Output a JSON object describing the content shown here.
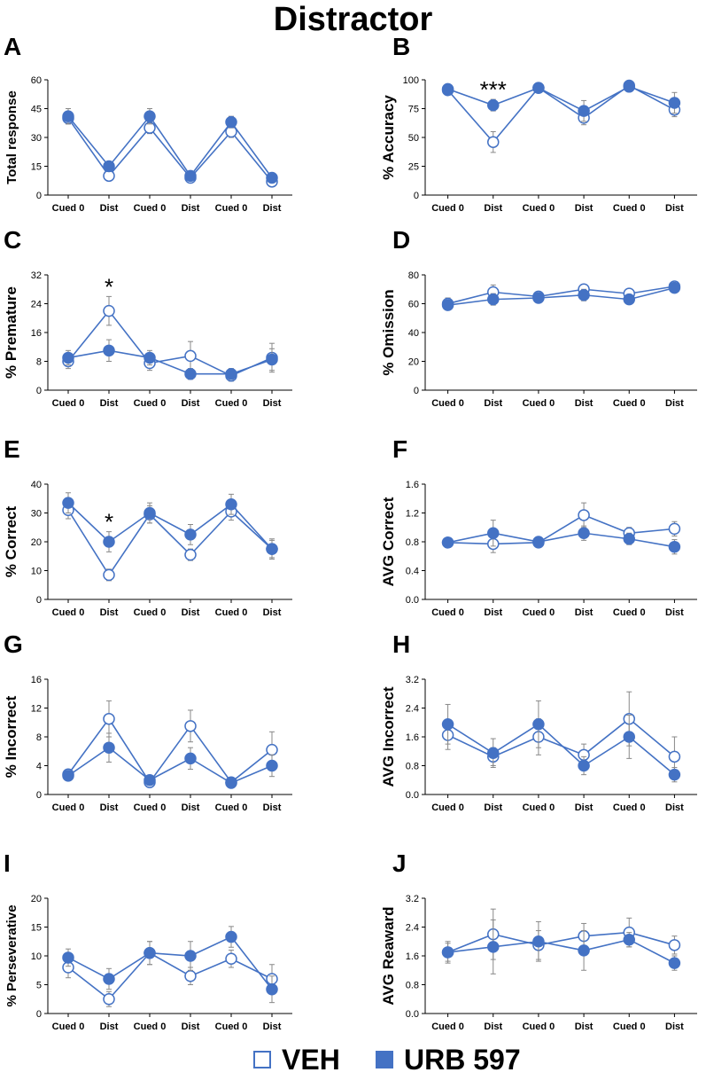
{
  "figure_title": "Distractor",
  "legend": [
    {
      "label": "VEH",
      "style": "open",
      "color": "#4472c4"
    },
    {
      "label": "URB 597",
      "style": "filled",
      "color": "#4472c4"
    }
  ],
  "colors": {
    "line": "#4472c4",
    "error": "#888888",
    "axis": "#000000"
  },
  "chart_data": [
    {
      "panel": "A",
      "type": "line",
      "ylabel": "Total response",
      "ylim": [
        0,
        60
      ],
      "yticks": [
        "0",
        "15",
        "30",
        "45",
        "60"
      ],
      "categories": [
        "Cued 0",
        "Dist",
        "Cued 0",
        "Dist",
        "Cued 0",
        "Dist"
      ],
      "series": [
        {
          "name": "VEH",
          "values": [
            40,
            10,
            35,
            9,
            33,
            7
          ],
          "errors": [
            3,
            1,
            3,
            1,
            3,
            1
          ]
        },
        {
          "name": "URB 597",
          "values": [
            41,
            15,
            41,
            10,
            38,
            9
          ],
          "errors": [
            4,
            2,
            4,
            1,
            3,
            1
          ]
        }
      ],
      "annotations": []
    },
    {
      "panel": "B",
      "type": "line",
      "ylabel": "% Accuracy",
      "ylim": [
        0,
        100
      ],
      "yticks": [
        "0",
        "25",
        "50",
        "75",
        "100"
      ],
      "categories": [
        "Cued 0",
        "Dist",
        "Cued 0",
        "Dist",
        "Cued 0",
        "Dist"
      ],
      "series": [
        {
          "name": "VEH",
          "values": [
            91,
            46,
            93,
            67,
            95,
            74
          ],
          "errors": [
            2,
            9,
            1,
            6,
            1,
            6
          ]
        },
        {
          "name": "URB 597",
          "values": [
            92,
            78,
            93,
            73,
            94,
            80
          ],
          "errors": [
            2,
            5,
            1,
            9,
            1,
            9
          ]
        }
      ],
      "annotations": [
        {
          "category_index": 1,
          "text": "***"
        }
      ]
    },
    {
      "panel": "C",
      "type": "line",
      "ylabel": "% Premature",
      "ylim": [
        0,
        32
      ],
      "yticks": [
        "0",
        "8",
        "16",
        "24",
        "32"
      ],
      "categories": [
        "Cued 0",
        "Dist",
        "Cued 0",
        "Dist",
        "Cued 0",
        "Dist"
      ],
      "series": [
        {
          "name": "VEH",
          "values": [
            8,
            22,
            7.5,
            9.5,
            4,
            9
          ],
          "errors": [
            2,
            4,
            2,
            4,
            1.5,
            4
          ]
        },
        {
          "name": "URB 597",
          "values": [
            9,
            11,
            9,
            4.5,
            4.5,
            8.5
          ],
          "errors": [
            2,
            3,
            2,
            1.5,
            1.5,
            3
          ]
        }
      ],
      "annotations": [
        {
          "category_index": 1,
          "text": "*"
        }
      ]
    },
    {
      "panel": "D",
      "type": "line",
      "ylabel": "% Omission",
      "ylim": [
        0,
        80
      ],
      "yticks": [
        "0",
        "20",
        "40",
        "60",
        "80"
      ],
      "categories": [
        "Cued 0",
        "Dist",
        "Cued 0",
        "Dist",
        "Cued 0",
        "Dist"
      ],
      "series": [
        {
          "name": "VEH",
          "values": [
            60,
            68,
            65,
            70,
            67,
            72
          ],
          "errors": [
            4,
            5,
            3,
            3,
            3,
            3
          ]
        },
        {
          "name": "URB 597",
          "values": [
            59,
            63,
            64,
            66,
            63,
            71
          ],
          "errors": [
            3,
            4,
            3,
            4,
            3,
            3
          ]
        }
      ],
      "annotations": []
    },
    {
      "panel": "E",
      "type": "line",
      "ylabel": "% Correct",
      "ylim": [
        0,
        40
      ],
      "yticks": [
        "0",
        "10",
        "20",
        "30",
        "40"
      ],
      "categories": [
        "Cued 0",
        "Dist",
        "Cued 0",
        "Dist",
        "Cued 0",
        "Dist"
      ],
      "series": [
        {
          "name": "VEH",
          "values": [
            31,
            8.5,
            29.5,
            15.5,
            30.5,
            17.5
          ],
          "errors": [
            3,
            2,
            3,
            2,
            3,
            3
          ]
        },
        {
          "name": "URB 597",
          "values": [
            33.5,
            20,
            30,
            22.5,
            33,
            17.5
          ],
          "errors": [
            3.5,
            3.5,
            3.5,
            3.5,
            3.5,
            3.5
          ]
        }
      ],
      "annotations": [
        {
          "category_index": 1,
          "text": "*"
        }
      ]
    },
    {
      "panel": "F",
      "type": "line",
      "ylabel": "AVG Correct",
      "ylim": [
        0,
        1.6
      ],
      "yticks": [
        "0.0",
        "0.4",
        "0.8",
        "1.2",
        "1.6"
      ],
      "categories": [
        "Cued 0",
        "Dist",
        "Cued 0",
        "Dist",
        "Cued 0",
        "Dist"
      ],
      "series": [
        {
          "name": "VEH",
          "values": [
            0.79,
            0.77,
            0.79,
            1.17,
            0.92,
            0.98
          ],
          "errors": [
            0.04,
            0.12,
            0.05,
            0.17,
            0.08,
            0.1
          ]
        },
        {
          "name": "URB 597",
          "values": [
            0.79,
            0.92,
            0.8,
            0.92,
            0.84,
            0.73
          ],
          "errors": [
            0.04,
            0.18,
            0.06,
            0.1,
            0.08,
            0.1
          ]
        }
      ],
      "annotations": []
    },
    {
      "panel": "G",
      "type": "line",
      "ylabel": "% Incorrect",
      "ylim": [
        0,
        16
      ],
      "yticks": [
        "0",
        "4",
        "8",
        "12",
        "16"
      ],
      "categories": [
        "Cued 0",
        "Dist",
        "Cued 0",
        "Dist",
        "Cued 0",
        "Dist"
      ],
      "series": [
        {
          "name": "VEH",
          "values": [
            2.8,
            10.5,
            1.7,
            9.5,
            1.7,
            6.2
          ],
          "errors": [
            0.5,
            2.5,
            0.5,
            2.2,
            0.4,
            2.5
          ]
        },
        {
          "name": "URB 597",
          "values": [
            2.6,
            6.5,
            2,
            5,
            1.6,
            4
          ],
          "errors": [
            0.5,
            2,
            0.5,
            1.5,
            0.4,
            1.5
          ]
        }
      ],
      "annotations": []
    },
    {
      "panel": "H",
      "type": "line",
      "ylabel": "AVG Incorrect",
      "ylim": [
        0,
        3.2
      ],
      "yticks": [
        "0.0",
        "0.8",
        "1.6",
        "2.4",
        "3.2"
      ],
      "categories": [
        "Cued 0",
        "Dist",
        "Cued 0",
        "Dist",
        "Cued 0",
        "Dist"
      ],
      "series": [
        {
          "name": "VEH",
          "values": [
            1.65,
            1.05,
            1.6,
            1.1,
            2.1,
            1.05
          ],
          "errors": [
            0.4,
            0.25,
            0.5,
            0.3,
            0.75,
            0.55
          ]
        },
        {
          "name": "URB 597",
          "values": [
            1.95,
            1.15,
            1.95,
            0.8,
            1.6,
            0.55
          ],
          "errors": [
            0.55,
            0.4,
            0.65,
            0.25,
            0.6,
            0.2
          ]
        }
      ],
      "annotations": []
    },
    {
      "panel": "I",
      "type": "line",
      "ylabel": "% Perseverative",
      "ylim": [
        0,
        20
      ],
      "yticks": [
        "0",
        "5",
        "10",
        "15",
        "20"
      ],
      "categories": [
        "Cued 0",
        "Dist",
        "Cued 0",
        "Dist",
        "Cued 0",
        "Dist"
      ],
      "series": [
        {
          "name": "VEH",
          "values": [
            8,
            2.5,
            10.5,
            6.5,
            9.5,
            6
          ],
          "errors": [
            1.8,
            1.3,
            2,
            1.5,
            1.5,
            2.5
          ]
        },
        {
          "name": "URB 597",
          "values": [
            9.7,
            6,
            10.5,
            10,
            13.3,
            4.2
          ],
          "errors": [
            1.5,
            1.8,
            2,
            2.5,
            1.8,
            2.3
          ]
        }
      ],
      "annotations": []
    },
    {
      "panel": "J",
      "type": "line",
      "ylabel": "AVG Reaward",
      "ylim": [
        0,
        3.2
      ],
      "yticks": [
        "0.0",
        "0.8",
        "1.6",
        "2.4",
        "3.2"
      ],
      "categories": [
        "Cued 0",
        "Dist",
        "Cued 0",
        "Dist",
        "Cued 0",
        "Dist"
      ],
      "series": [
        {
          "name": "VEH",
          "values": [
            1.7,
            2.2,
            1.9,
            2.15,
            2.25,
            1.9
          ],
          "errors": [
            0.25,
            0.7,
            0.4,
            0.35,
            0.4,
            0.25
          ]
        },
        {
          "name": "URB 597",
          "values": [
            1.7,
            1.85,
            2,
            1.75,
            2.05,
            1.4
          ],
          "errors": [
            0.3,
            0.75,
            0.55,
            0.55,
            0.2,
            0.2
          ]
        }
      ],
      "annotations": []
    }
  ]
}
